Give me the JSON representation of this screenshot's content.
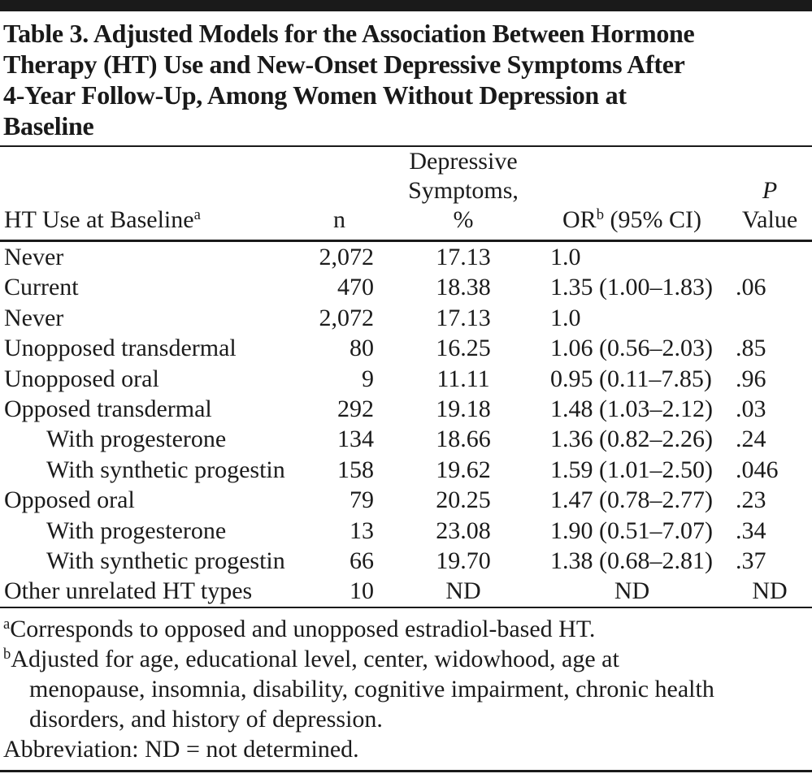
{
  "title_lines": [
    "Table 3. Adjusted Models for the Association Between Hormone",
    "Therapy (HT) Use and New-Onset Depressive Symptoms After",
    "4-Year Follow-Up, Among Women Without Depression at",
    "Baseline"
  ],
  "header": {
    "col1": {
      "text": "HT Use at Baseline",
      "sup": "a"
    },
    "col2": {
      "text": "n"
    },
    "col3": {
      "line1": "Depressive",
      "line2": "Symptoms,",
      "line3": "%"
    },
    "col4": {
      "text": "OR",
      "sup": "b",
      "suffix": " (95% CI)"
    },
    "col5": {
      "line1": "P",
      "line2": "Value"
    }
  },
  "rows": [
    {
      "label": "Never",
      "indent": false,
      "n": "2,072",
      "pct": "17.13",
      "or": "1.0",
      "p": ""
    },
    {
      "label": "Current",
      "indent": false,
      "n": "470",
      "pct": "18.38",
      "or": "1.35 (1.00–1.83)",
      "p": ".06"
    },
    {
      "label": "Never",
      "indent": false,
      "n": "2,072",
      "pct": "17.13",
      "or": "1.0",
      "p": ""
    },
    {
      "label": "Unopposed transdermal",
      "indent": false,
      "n": "80",
      "pct": "16.25",
      "or": "1.06 (0.56–2.03)",
      "p": ".85"
    },
    {
      "label": "Unopposed oral",
      "indent": false,
      "n": "9",
      "pct": "11.11",
      "or": "0.95 (0.11–7.85)",
      "p": ".96"
    },
    {
      "label": "Opposed transdermal",
      "indent": false,
      "n": "292",
      "pct": "19.18",
      "or": "1.48 (1.03–2.12)",
      "p": ".03"
    },
    {
      "label": "With progesterone",
      "indent": true,
      "n": "134",
      "pct": "18.66",
      "or": "1.36 (0.82–2.26)",
      "p": ".24"
    },
    {
      "label": "With synthetic progestin",
      "indent": true,
      "n": "158",
      "pct": "19.62",
      "or": "1.59 (1.01–2.50)",
      "p": ".046"
    },
    {
      "label": "Opposed oral",
      "indent": false,
      "n": "79",
      "pct": "20.25",
      "or": "1.47 (0.78–2.77)",
      "p": ".23"
    },
    {
      "label": "With progesterone",
      "indent": true,
      "n": "13",
      "pct": "23.08",
      "or": "1.90 (0.51–7.07)",
      "p": ".34"
    },
    {
      "label": "With synthetic progestin",
      "indent": true,
      "n": "66",
      "pct": "19.70",
      "or": "1.38 (0.68–2.81)",
      "p": ".37"
    },
    {
      "label": "Other unrelated HT types",
      "indent": false,
      "n": "10",
      "pct": "ND",
      "or": "ND",
      "p": "ND"
    }
  ],
  "footnotes": [
    {
      "marker": "a",
      "lines": [
        "Corresponds to opposed and unopposed estradiol-based HT."
      ]
    },
    {
      "marker": "b",
      "lines": [
        "Adjusted for age, educational level, center, widowhood, age at",
        "menopause, insomnia, disability, cognitive impairment, chronic health",
        "disorders, and history of depression."
      ]
    },
    {
      "marker": "",
      "lines": [
        "Abbreviation: ND = not determined."
      ]
    }
  ],
  "colors": {
    "text": "#1b1b1b",
    "rule": "#1a1a1a",
    "background": "#ffffff"
  }
}
